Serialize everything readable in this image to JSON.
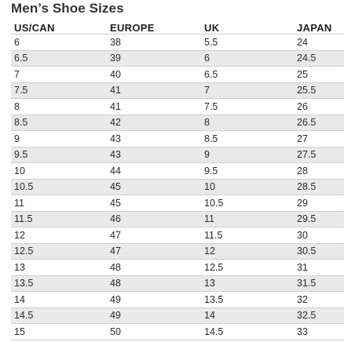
{
  "title": "Men’s Shoe Sizes",
  "columns": [
    "US/CAN",
    "EUROPE",
    "UK",
    "JAPAN"
  ],
  "rows": [
    [
      "6",
      "38",
      "5.5",
      "24"
    ],
    [
      "6.5",
      "39",
      "6",
      "24.5"
    ],
    [
      "7",
      "40",
      "6.5",
      "25"
    ],
    [
      "7.5",
      "41",
      "7",
      "25.5"
    ],
    [
      "8",
      "41",
      "7.5",
      "26"
    ],
    [
      "8.5",
      "42",
      "8",
      "26.5"
    ],
    [
      "9",
      "43",
      "8.5",
      "27"
    ],
    [
      "9.5",
      "43",
      "9",
      "27.5"
    ],
    [
      "10",
      "44",
      "9.5",
      "28"
    ],
    [
      "10.5",
      "45",
      "10",
      "28.5"
    ],
    [
      "11",
      "45",
      "10.5",
      "29"
    ],
    [
      "11.5",
      "46",
      "11",
      "29.5"
    ],
    [
      "12",
      "47",
      "11.5",
      "30"
    ],
    [
      "12.5",
      "47",
      "12",
      "30.5"
    ],
    [
      "13",
      "48",
      "12.5",
      "31"
    ],
    [
      "13.5",
      "48",
      "13",
      "31.5"
    ],
    [
      "14",
      "49",
      "13.5",
      "32"
    ],
    [
      "14.5",
      "49",
      "14",
      "32.5"
    ],
    [
      "15",
      "50",
      "14.5",
      "33"
    ]
  ],
  "colors": {
    "stripe": "#e9e9e9",
    "rule": "#cfcfcf",
    "text": "#2a2a2a"
  }
}
